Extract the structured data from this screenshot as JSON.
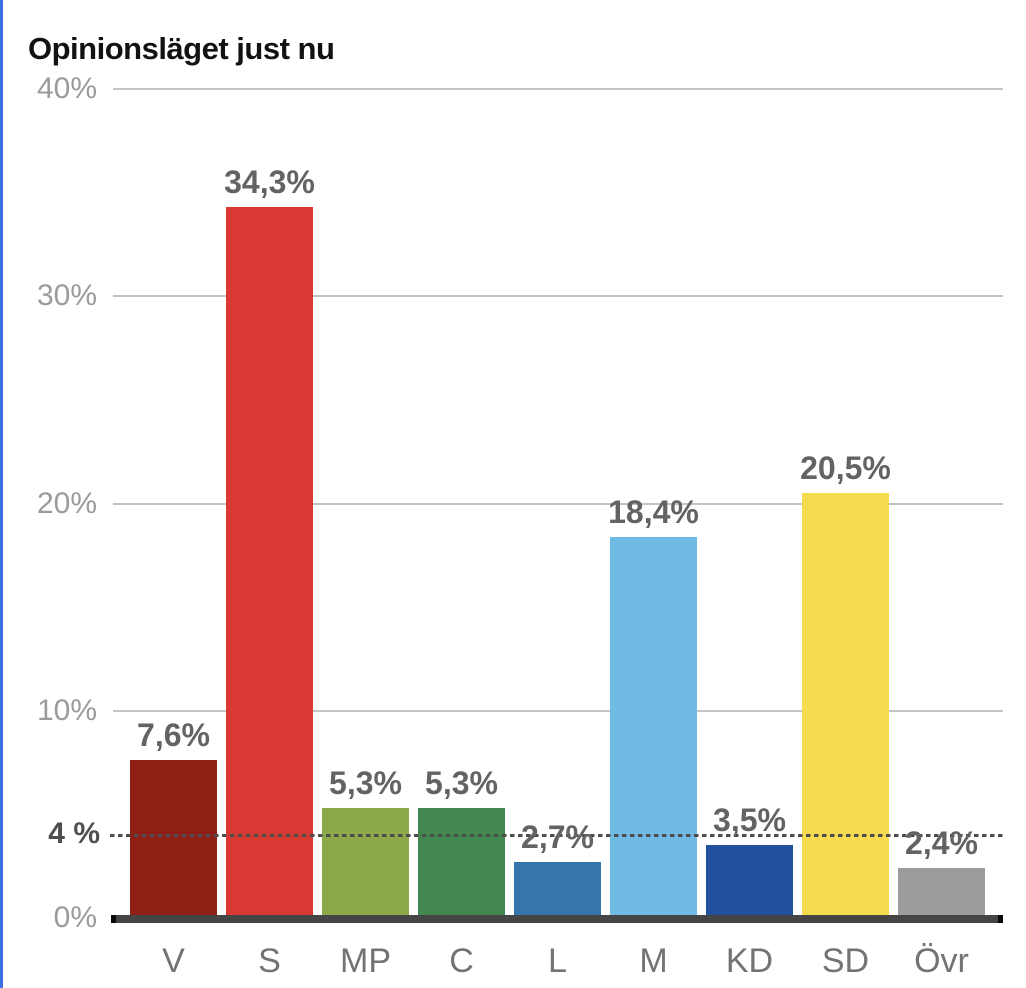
{
  "title": "Opinionsläget just nu",
  "chart_data": {
    "type": "bar",
    "title": "Opinionsläget just nu",
    "categories": [
      "V",
      "S",
      "MP",
      "C",
      "L",
      "M",
      "KD",
      "SD",
      "Övr"
    ],
    "values": [
      7.6,
      34.3,
      5.3,
      5.3,
      2.7,
      18.4,
      3.5,
      20.5,
      2.4
    ],
    "value_labels": [
      "7,6%",
      "34,3%",
      "5,3%",
      "5,3%",
      "2,7%",
      "18,4%",
      "3,5%",
      "20,5%",
      "2,4%"
    ],
    "bar_colors": [
      "#8E2016",
      "#D83A33",
      "#8BA948",
      "#438750",
      "#3575AC",
      "#6FBBE4",
      "#20509E",
      "#F6DB4F",
      "#9C9C9C"
    ],
    "xlabel": "",
    "ylabel": "",
    "ylim": [
      0,
      40
    ],
    "y_ticks": [
      {
        "value": 40,
        "label": "40%"
      },
      {
        "value": 30,
        "label": "30%"
      },
      {
        "value": 20,
        "label": "20%"
      },
      {
        "value": 10,
        "label": "10%"
      }
    ],
    "zero_tick_label": "0%",
    "threshold": {
      "value": 4,
      "label": "4 %",
      "style": "dashed"
    },
    "grid": true,
    "legend": false
  },
  "colors": {
    "accent_border": "#3B6FE3",
    "grid_line": "#C4C4C4",
    "axis_line": "#454545",
    "axis_cap": "#0A0A0A",
    "tick_label": "#9B9B9B",
    "threshold_label": "#4F4F4F",
    "threshold_dash": "#4D4D4D",
    "value_label": "#636363",
    "category_label": "#737373",
    "title_text": "#121212"
  }
}
